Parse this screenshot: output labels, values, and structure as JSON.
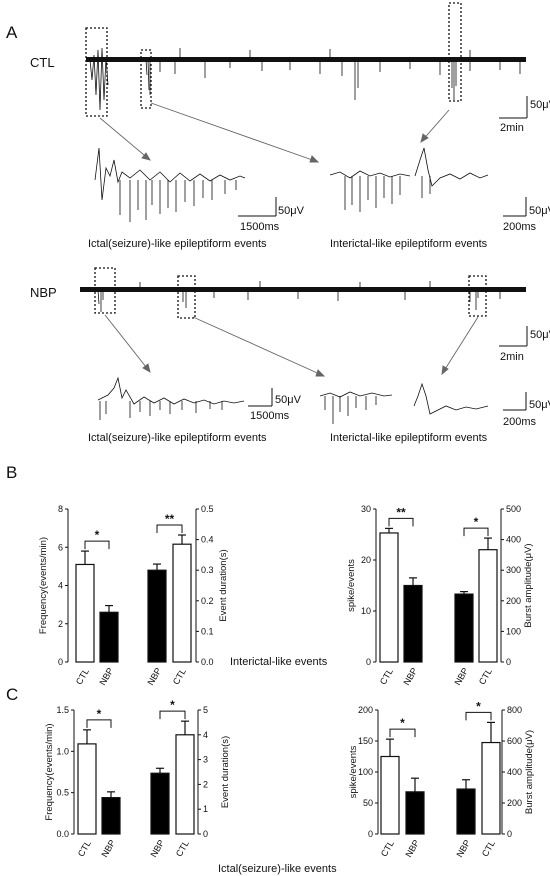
{
  "panels": {
    "A": "A",
    "B": "B",
    "C": "C"
  },
  "panel_a": {
    "conditions": {
      "ctl": "CTL",
      "nbp": "NBP"
    },
    "captions": {
      "ctl_ictal": "Ictal(seizure)-like epileptiform events",
      "ctl_interictal": "Interictal-like epileptiform events",
      "nbp_ictal": "Ictal(seizure)-like epileptiform events",
      "nbp_interictal": "Interictal-like epileptiform events"
    },
    "scales": {
      "ctl_main_v": "50μV",
      "ctl_main_t": "2min",
      "ctl_ictal_v": "50μV",
      "ctl_ictal_t": "1500ms",
      "ctl_inter_v": "50μV",
      "ctl_inter_t": "200ms",
      "nbp_main_v": "50μV",
      "nbp_main_t": "2min",
      "nbp_ictal_v": "50μV",
      "nbp_ictal_t": "1500ms",
      "nbp_inter_v": "50μV",
      "nbp_inter_t": "200ms"
    }
  },
  "group_titles": {
    "B": "Interictal-like  events",
    "C": "Ictal(seizure)-like  events"
  },
  "chart_data": [
    {
      "id": "B1",
      "type": "bar",
      "categories": [
        "CTL",
        "NBP"
      ],
      "values": [
        5.1,
        2.6
      ],
      "errors": [
        0.7,
        0.35
      ],
      "fills": [
        "#ffffff",
        "#000000"
      ],
      "ylabel": "Frequency(events/min)",
      "ylim": [
        0,
        8
      ],
      "yticks": [
        "0",
        "2",
        "4",
        "6",
        "8"
      ],
      "yticks_num": [
        0,
        2,
        4,
        6,
        8
      ],
      "axis_side": "left",
      "significance": "*"
    },
    {
      "id": "B2",
      "type": "bar",
      "categories": [
        "NBP",
        "CTL"
      ],
      "values": [
        0.3,
        0.385
      ],
      "errors": [
        0.02,
        0.03
      ],
      "fills": [
        "#000000",
        "#ffffff"
      ],
      "ylabel": "Event duration(s)",
      "ylim": [
        0,
        0.5
      ],
      "yticks": [
        "0.0",
        "0.1",
        "0.2",
        "0.3",
        "0.4",
        "0.5"
      ],
      "yticks_num": [
        0,
        0.1,
        0.2,
        0.3,
        0.4,
        0.5
      ],
      "axis_side": "right",
      "significance": "**"
    },
    {
      "id": "B3",
      "type": "bar",
      "categories": [
        "CTL",
        "NBP"
      ],
      "values": [
        25.3,
        15.0
      ],
      "errors": [
        0.9,
        1.5
      ],
      "fills": [
        "#ffffff",
        "#000000"
      ],
      "ylabel": "spike/events",
      "ylim": [
        0,
        30
      ],
      "yticks": [
        "0",
        "10",
        "20",
        "30"
      ],
      "yticks_num": [
        0,
        10,
        20,
        30
      ],
      "axis_side": "left",
      "significance": "**"
    },
    {
      "id": "B4",
      "type": "bar",
      "categories": [
        "NBP",
        "CTL"
      ],
      "values": [
        222,
        367
      ],
      "errors": [
        8,
        38
      ],
      "fills": [
        "#000000",
        "#ffffff"
      ],
      "ylabel": "Burst amplitude(μV)",
      "ylim": [
        0,
        500
      ],
      "yticks": [
        "0",
        "100",
        "200",
        "300",
        "400",
        "500"
      ],
      "yticks_num": [
        0,
        100,
        200,
        300,
        400,
        500
      ],
      "axis_side": "right",
      "significance": "*"
    },
    {
      "id": "C1",
      "type": "bar",
      "categories": [
        "CTL",
        "NBP"
      ],
      "values": [
        1.09,
        0.44
      ],
      "errors": [
        0.17,
        0.07
      ],
      "fills": [
        "#ffffff",
        "#000000"
      ],
      "ylabel": "Frequency(events/min)",
      "ylim": [
        0,
        1.5
      ],
      "yticks": [
        "0.0",
        "0.5",
        "1.0",
        "1.5"
      ],
      "yticks_num": [
        0,
        0.5,
        1.0,
        1.5
      ],
      "axis_side": "left",
      "significance": "*"
    },
    {
      "id": "C2",
      "type": "bar",
      "categories": [
        "NBP",
        "CTL"
      ],
      "values": [
        2.45,
        4.0
      ],
      "errors": [
        0.2,
        0.55
      ],
      "fills": [
        "#000000",
        "#ffffff"
      ],
      "ylabel": "Event duration(s)",
      "ylim": [
        0,
        5
      ],
      "yticks": [
        "0",
        "1",
        "2",
        "3",
        "4",
        "5"
      ],
      "yticks_num": [
        0,
        1,
        2,
        3,
        4,
        5
      ],
      "axis_side": "right",
      "significance": "*"
    },
    {
      "id": "C3",
      "type": "bar",
      "categories": [
        "CTL",
        "NBP"
      ],
      "values": [
        125,
        68
      ],
      "errors": [
        28,
        22
      ],
      "fills": [
        "#ffffff",
        "#000000"
      ],
      "ylabel": "spike/events",
      "ylim": [
        0,
        200
      ],
      "yticks": [
        "0",
        "50",
        "100",
        "150",
        "200"
      ],
      "yticks_num": [
        0,
        50,
        100,
        150,
        200
      ],
      "axis_side": "left",
      "significance": "*"
    },
    {
      "id": "C4",
      "type": "bar",
      "categories": [
        "NBP",
        "CTL"
      ],
      "values": [
        290,
        590
      ],
      "errors": [
        60,
        130
      ],
      "fills": [
        "#000000",
        "#ffffff"
      ],
      "ylabel": "Burst amplitude(μV)",
      "ylim": [
        0,
        800
      ],
      "yticks": [
        "0",
        "200",
        "400",
        "600",
        "800"
      ],
      "yticks_num": [
        0,
        200,
        400,
        600,
        800
      ],
      "axis_side": "right",
      "significance": "*"
    }
  ]
}
